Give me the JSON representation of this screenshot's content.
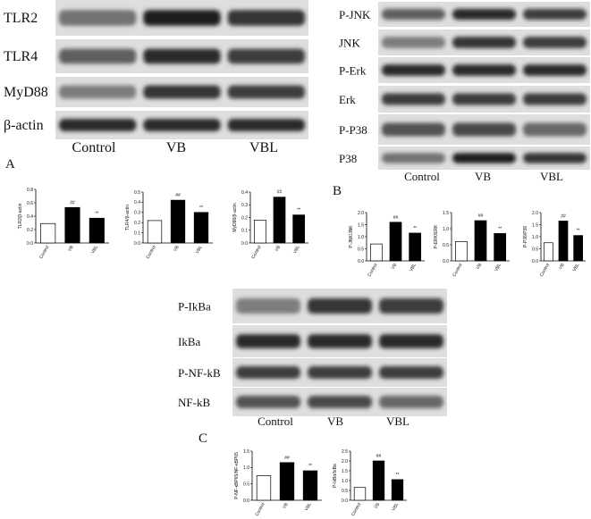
{
  "blots": [
    {
      "panel_label": "A",
      "rows": [
        "TLR2",
        "TLR4",
        "MyD88",
        "β-actin"
      ],
      "lanes": [
        "Control",
        "VB",
        "VBL"
      ]
    },
    {
      "panel_label": "B",
      "rows": [
        "P-JNK",
        "JNK",
        "P-Erk",
        "Erk",
        "P-P38",
        "P38"
      ],
      "lanes": [
        "Control",
        "VB",
        "VBL"
      ]
    },
    {
      "panel_label": "C",
      "rows": [
        "P-IkBa",
        "IkBa",
        "P-NF-kB",
        "NF-kB"
      ],
      "lanes": [
        "Control",
        "VB",
        "VBL"
      ]
    }
  ],
  "chart_data": [
    {
      "type": "bar",
      "y_label": "TLR2/β-actin",
      "categories": [
        "Control",
        "VB",
        "VBL"
      ],
      "values": [
        0.29,
        0.53,
        0.37
      ],
      "colors": [
        "#ffffff",
        "#000000",
        "#000000"
      ],
      "annotations": [
        "##",
        "**"
      ],
      "ylim": [
        0,
        0.8
      ],
      "yticks": [
        {
          "value": 0,
          "label": "0.0"
        },
        0.2,
        0.4,
        0.6,
        0.8
      ]
    },
    {
      "type": "bar",
      "y_label": "TLR4/β-actin",
      "categories": [
        "Control",
        "VB",
        "VBL"
      ],
      "values": [
        0.22,
        0.42,
        0.3
      ],
      "colors": [
        "#ffffff",
        "#000000",
        "#000000"
      ],
      "annotations": [
        "##",
        "**"
      ],
      "ylim": [
        0,
        0.5
      ],
      "yticks": [
        {
          "value": 0,
          "label": "0.0"
        },
        0.1,
        0.2,
        0.3,
        0.4,
        0.5
      ]
    },
    {
      "type": "bar",
      "y_label": "MyD88/β-actin",
      "categories": [
        "Control",
        "VB",
        "VBL"
      ],
      "values": [
        0.18,
        0.36,
        0.22
      ],
      "colors": [
        "#ffffff",
        "#000000",
        "#000000"
      ],
      "annotations": [
        "##",
        "**"
      ],
      "ylim": [
        0,
        0.4
      ],
      "yticks": [
        {
          "value": 0,
          "label": "0.0"
        },
        0.1,
        0.2,
        0.3,
        0.4
      ]
    },
    {
      "type": "bar",
      "y_label": "P-JNK/JNK",
      "categories": [
        "Control",
        "VB",
        "VBL"
      ],
      "values": [
        0.7,
        1.6,
        1.15
      ],
      "colors": [
        "#ffffff",
        "#000000",
        "#000000"
      ],
      "annotations": [
        "##",
        "**"
      ],
      "ylim": [
        0,
        2
      ],
      "yticks": [
        {
          "value": 0,
          "label": "0.0"
        },
        0.5,
        {
          "value": 1,
          "label": "1.0"
        },
        1.5,
        {
          "value": 2,
          "label": "2.0"
        }
      ]
    },
    {
      "type": "bar",
      "y_label": "P-ERK/ERK",
      "categories": [
        "Control",
        "VB",
        "VBL"
      ],
      "values": [
        0.6,
        1.25,
        0.85
      ],
      "colors": [
        "#ffffff",
        "#000000",
        "#000000"
      ],
      "annotations": [
        "##",
        "**"
      ],
      "ylim": [
        0,
        1.5
      ],
      "yticks": [
        {
          "value": 0,
          "label": "0.0"
        },
        0.5,
        {
          "value": 1,
          "label": "1.0"
        },
        1.5
      ]
    },
    {
      "type": "bar",
      "y_label": "P-P38/P38",
      "categories": [
        "Control",
        "VB",
        "VBL"
      ],
      "values": [
        0.75,
        1.65,
        1.05
      ],
      "colors": [
        "#ffffff",
        "#000000",
        "#000000"
      ],
      "annotations": [
        "##",
        "**"
      ],
      "ylim": [
        0,
        2
      ],
      "yticks": [
        {
          "value": 0,
          "label": "0.0"
        },
        0.5,
        {
          "value": 1,
          "label": "1.0"
        },
        1.5,
        {
          "value": 2,
          "label": "2.0"
        }
      ]
    },
    {
      "type": "bar",
      "y_label": "P-NF-κBP65/NF-κBP65",
      "categories": [
        "Control",
        "VB",
        "VBL"
      ],
      "values": [
        0.75,
        1.15,
        0.9
      ],
      "colors": [
        "#ffffff",
        "#000000",
        "#000000"
      ],
      "annotations": [
        "##",
        "**"
      ],
      "ylim": [
        0,
        1.5
      ],
      "yticks": [
        {
          "value": 0,
          "label": "0.0"
        },
        0.5,
        {
          "value": 1,
          "label": "1.0"
        },
        1.5
      ]
    },
    {
      "type": "bar",
      "y_label": "P-IκBα/IκBα",
      "categories": [
        "Control",
        "VB",
        "VBL"
      ],
      "values": [
        0.65,
        2,
        1.05
      ],
      "colors": [
        "#ffffff",
        "#000000",
        "#000000"
      ],
      "annotations": [
        "##",
        "**"
      ],
      "ylim": [
        0,
        2.5
      ],
      "yticks": [
        {
          "value": 0,
          "label": "0.0"
        },
        0.5,
        {
          "value": 1,
          "label": "1.0"
        },
        1.5,
        {
          "value": 2,
          "label": "2.0"
        },
        2.5
      ]
    }
  ]
}
